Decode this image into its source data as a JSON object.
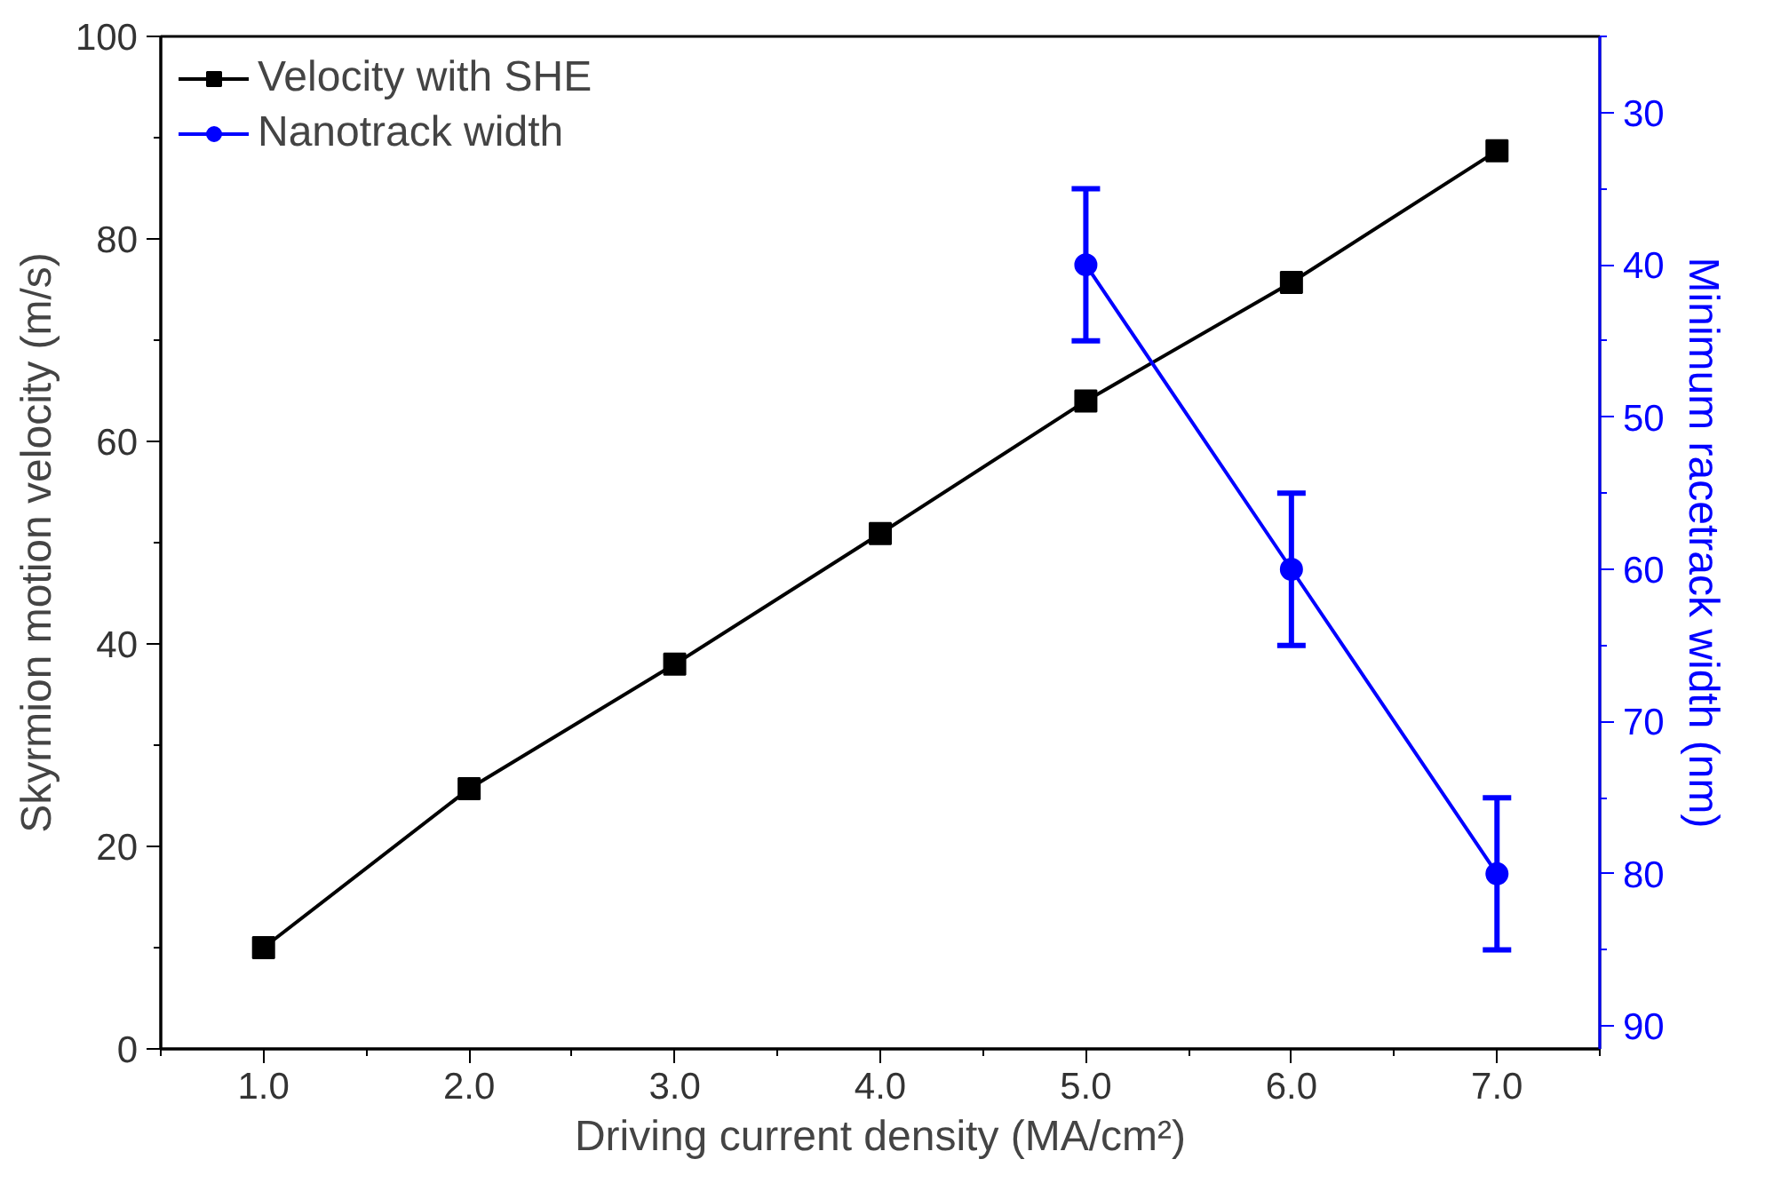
{
  "chart_data": {
    "type": "line",
    "xlabel": "Driving current density (MA/cm²)",
    "ylabel": "Skyrmion motion velocity (m/s)",
    "y2label": "Minimum racetrack width (nm)",
    "x": [
      1,
      2,
      3,
      4,
      5,
      6,
      7
    ],
    "xlim": [
      0.5,
      7.5
    ],
    "xticks": [
      {
        "value": 1,
        "label": "1.0"
      },
      {
        "value": 2,
        "label": "2.0"
      },
      {
        "value": 3,
        "label": "3.0"
      },
      {
        "value": 4,
        "label": "4.0"
      },
      {
        "value": 5,
        "label": "5.0"
      },
      {
        "value": 6,
        "label": "6.0"
      },
      {
        "value": 7,
        "label": "7.0"
      }
    ],
    "ylim": [
      0,
      100
    ],
    "yticks": [
      0,
      20,
      40,
      60,
      80,
      100
    ],
    "y2lim": [
      91.5,
      25
    ],
    "y2ticks": [
      30,
      40,
      50,
      60,
      70,
      80,
      90
    ],
    "series": [
      {
        "name": "Velocity with SHE",
        "color": "#000000",
        "marker": "square",
        "values": [
          10,
          25.7,
          38,
          50.9,
          64,
          75.7,
          88.7
        ]
      },
      {
        "name": "Nanotrack width",
        "color": "#0000ff",
        "marker": "circle",
        "axis": "y2",
        "x": [
          5,
          6,
          7
        ],
        "values": [
          40,
          60,
          80
        ],
        "errors": [
          5,
          5,
          5
        ]
      }
    ],
    "legend": "top left",
    "grid": false
  }
}
